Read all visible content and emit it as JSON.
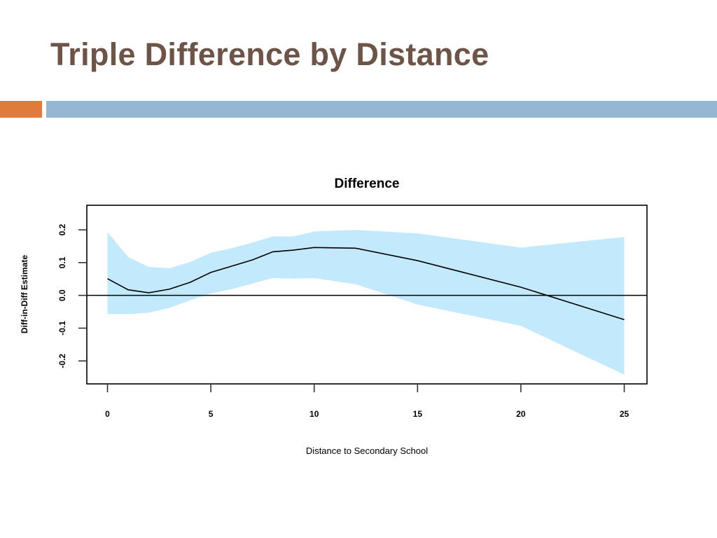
{
  "slide": {
    "title": "Triple Difference by Distance",
    "colors": {
      "title": "#6d5447",
      "accent_orange": "#e07b3c",
      "accent_blue": "#94b6d3"
    }
  },
  "chart_data": {
    "type": "line",
    "title": "Difference",
    "xlabel": "Distance to Secondary School",
    "ylabel": "Diff-in-Diff Estimate",
    "xlim": [
      -1,
      26.1
    ],
    "ylim": [
      -0.27,
      0.275
    ],
    "xticks": [
      0,
      5,
      10,
      15,
      20,
      25
    ],
    "yticks": [
      -0.2,
      -0.1,
      0.0,
      0.1,
      0.2
    ],
    "ytick_labels": [
      "-0.2",
      "-0.1",
      "0.0",
      "0.1",
      "0.2"
    ],
    "grid": false,
    "reference_line": 0.0,
    "x": [
      0,
      1,
      2,
      3,
      4,
      5,
      6,
      7,
      8,
      9,
      10,
      12,
      15,
      20,
      25
    ],
    "estimate": [
      0.051,
      0.017,
      0.008,
      0.019,
      0.04,
      0.07,
      0.089,
      0.108,
      0.133,
      0.138,
      0.146,
      0.144,
      0.106,
      0.025,
      -0.074
    ],
    "upper": [
      0.193,
      0.117,
      0.087,
      0.083,
      0.102,
      0.13,
      0.144,
      0.161,
      0.18,
      0.18,
      0.195,
      0.2,
      0.189,
      0.146,
      0.178
    ],
    "lower": [
      -0.057,
      -0.057,
      -0.053,
      -0.038,
      -0.015,
      0.006,
      0.019,
      0.036,
      0.053,
      0.051,
      0.053,
      0.034,
      -0.028,
      -0.093,
      -0.242
    ],
    "colors": {
      "band": "#c2eafc",
      "line": "#000000"
    }
  }
}
